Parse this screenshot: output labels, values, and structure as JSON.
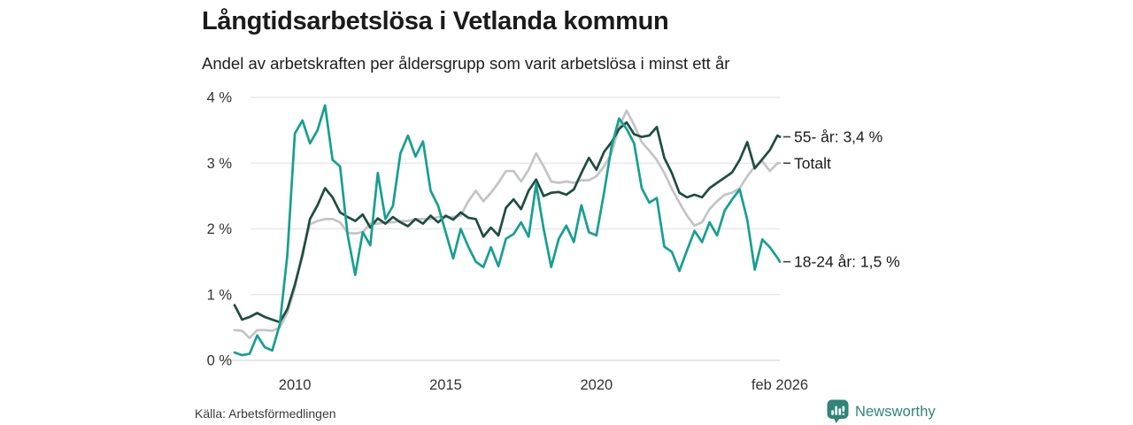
{
  "header": {
    "title": "Långtidsarbetslösa i Vetlanda kommun",
    "subtitle": "Andel av arbetskraften per åldersgrupp som varit arbetslösa i minst ett år"
  },
  "footer": {
    "source": "Källa: Arbetsförmedlingen",
    "brand": "Newsworthy",
    "brand_color": "#2E8578"
  },
  "chart_data": {
    "type": "line",
    "title": "Långtidsarbetslösa i Vetlanda kommun",
    "subtitle": "Andel av arbetskraften per åldersgrupp som varit arbetslösa i minst ett år",
    "xlabel": "",
    "ylabel": "",
    "grid": true,
    "legend_position": "right-end-labels",
    "ylim": [
      0,
      4
    ],
    "x_range": [
      2008,
      2026.08
    ],
    "yticks": [
      {
        "value": 0,
        "label": "0 %"
      },
      {
        "value": 1,
        "label": "1 %"
      },
      {
        "value": 2,
        "label": "2 %"
      },
      {
        "value": 3,
        "label": "3 %"
      },
      {
        "value": 4,
        "label": "4 %"
      }
    ],
    "xticks": [
      {
        "x": 2010,
        "label": "2010"
      },
      {
        "x": 2015,
        "label": "2015"
      },
      {
        "x": 2020,
        "label": "2020"
      },
      {
        "x": 2026.08,
        "label": "feb 2026"
      }
    ],
    "colors": {
      "grid": "#e4e4e6",
      "zero_line": "#d7d7d9",
      "tick_text": "#333333",
      "end_label_text": "#1b1b1b",
      "end_label_dash": "#3f3f3f"
    },
    "x": [
      2008,
      2008.25,
      2008.5,
      2008.75,
      2009,
      2009.25,
      2009.5,
      2009.75,
      2010,
      2010.25,
      2010.5,
      2010.75,
      2011,
      2011.25,
      2011.5,
      2011.75,
      2012,
      2012.25,
      2012.5,
      2012.75,
      2013,
      2013.25,
      2013.5,
      2013.75,
      2014,
      2014.25,
      2014.5,
      2014.75,
      2015,
      2015.25,
      2015.5,
      2015.75,
      2016,
      2016.25,
      2016.5,
      2016.75,
      2017,
      2017.25,
      2017.5,
      2017.75,
      2018,
      2018.25,
      2018.5,
      2018.75,
      2019,
      2019.25,
      2019.5,
      2019.75,
      2020,
      2020.25,
      2020.5,
      2020.75,
      2021,
      2021.25,
      2021.5,
      2021.75,
      2022,
      2022.25,
      2022.5,
      2022.75,
      2023,
      2023.25,
      2023.5,
      2023.75,
      2024,
      2024.25,
      2024.5,
      2024.75,
      2025,
      2025.25,
      2025.5,
      2025.75,
      2026,
      2026.08
    ],
    "series": [
      {
        "name": "Totalt",
        "end_label": "Totalt",
        "end_value": "3,0 %",
        "color": "#c4c4c8",
        "stroke_width": 2.7,
        "values": [
          0.46,
          0.45,
          0.34,
          0.46,
          0.46,
          0.45,
          0.5,
          0.72,
          1.1,
          1.65,
          2.07,
          2.12,
          2.15,
          2.15,
          2.1,
          1.94,
          1.93,
          1.95,
          2.08,
          2.08,
          2.1,
          2.1,
          2.12,
          2.12,
          2.15,
          2.15,
          2.15,
          2.18,
          2.18,
          2.18,
          2.2,
          2.42,
          2.58,
          2.42,
          2.55,
          2.7,
          2.88,
          2.88,
          2.72,
          2.9,
          3.15,
          2.95,
          2.72,
          2.7,
          2.72,
          2.7,
          2.74,
          2.74,
          2.8,
          2.95,
          3.15,
          3.55,
          3.8,
          3.58,
          3.32,
          3.19,
          3.05,
          2.85,
          2.61,
          2.4,
          2.2,
          2.05,
          2.1,
          2.3,
          2.42,
          2.52,
          2.55,
          2.62,
          2.8,
          2.95,
          3.03,
          2.88,
          3.0,
          3.0
        ]
      },
      {
        "name": "55- år",
        "end_label": "55- år: 3,4 %",
        "end_value": "3,4 %",
        "color": "#1f4c42",
        "stroke_width": 2.7,
        "values": [
          0.84,
          0.62,
          0.66,
          0.72,
          0.66,
          0.62,
          0.58,
          0.78,
          1.15,
          1.6,
          2.15,
          2.36,
          2.62,
          2.48,
          2.25,
          2.18,
          2.12,
          2.22,
          2.02,
          2.16,
          2.08,
          2.18,
          2.1,
          2.04,
          2.15,
          2.08,
          2.2,
          2.1,
          2.2,
          2.14,
          2.25,
          2.17,
          2.15,
          1.88,
          2.02,
          1.9,
          2.32,
          2.45,
          2.3,
          2.58,
          2.75,
          2.5,
          2.55,
          2.56,
          2.52,
          2.6,
          2.85,
          3.08,
          2.9,
          3.17,
          3.32,
          3.52,
          3.62,
          3.44,
          3.4,
          3.42,
          3.55,
          3.08,
          2.85,
          2.55,
          2.48,
          2.52,
          2.48,
          2.62,
          2.7,
          2.78,
          2.86,
          3.05,
          3.32,
          2.92,
          3.06,
          3.2,
          3.42,
          3.4
        ]
      },
      {
        "name": "18-24 år",
        "end_label": "18-24 år: 1,5 %",
        "end_value": "1,5 %",
        "color": "#16a08e",
        "stroke_width": 2.7,
        "values": [
          0.12,
          0.08,
          0.1,
          0.38,
          0.2,
          0.15,
          0.55,
          1.6,
          3.45,
          3.65,
          3.3,
          3.5,
          3.88,
          3.05,
          2.95,
          1.9,
          1.3,
          1.95,
          1.75,
          2.85,
          2.15,
          2.35,
          3.15,
          3.42,
          3.1,
          3.33,
          2.58,
          2.35,
          1.95,
          1.55,
          2.0,
          1.73,
          1.5,
          1.42,
          1.72,
          1.43,
          1.85,
          1.92,
          2.1,
          1.88,
          2.68,
          2.0,
          1.42,
          1.85,
          2.05,
          1.8,
          2.36,
          1.95,
          1.9,
          2.55,
          3.25,
          3.68,
          3.52,
          3.3,
          2.62,
          2.4,
          2.47,
          1.73,
          1.65,
          1.36,
          1.67,
          1.97,
          1.8,
          2.1,
          1.9,
          2.28,
          2.45,
          2.6,
          2.14,
          1.38,
          1.84,
          1.72,
          1.56,
          1.5
        ]
      }
    ]
  }
}
